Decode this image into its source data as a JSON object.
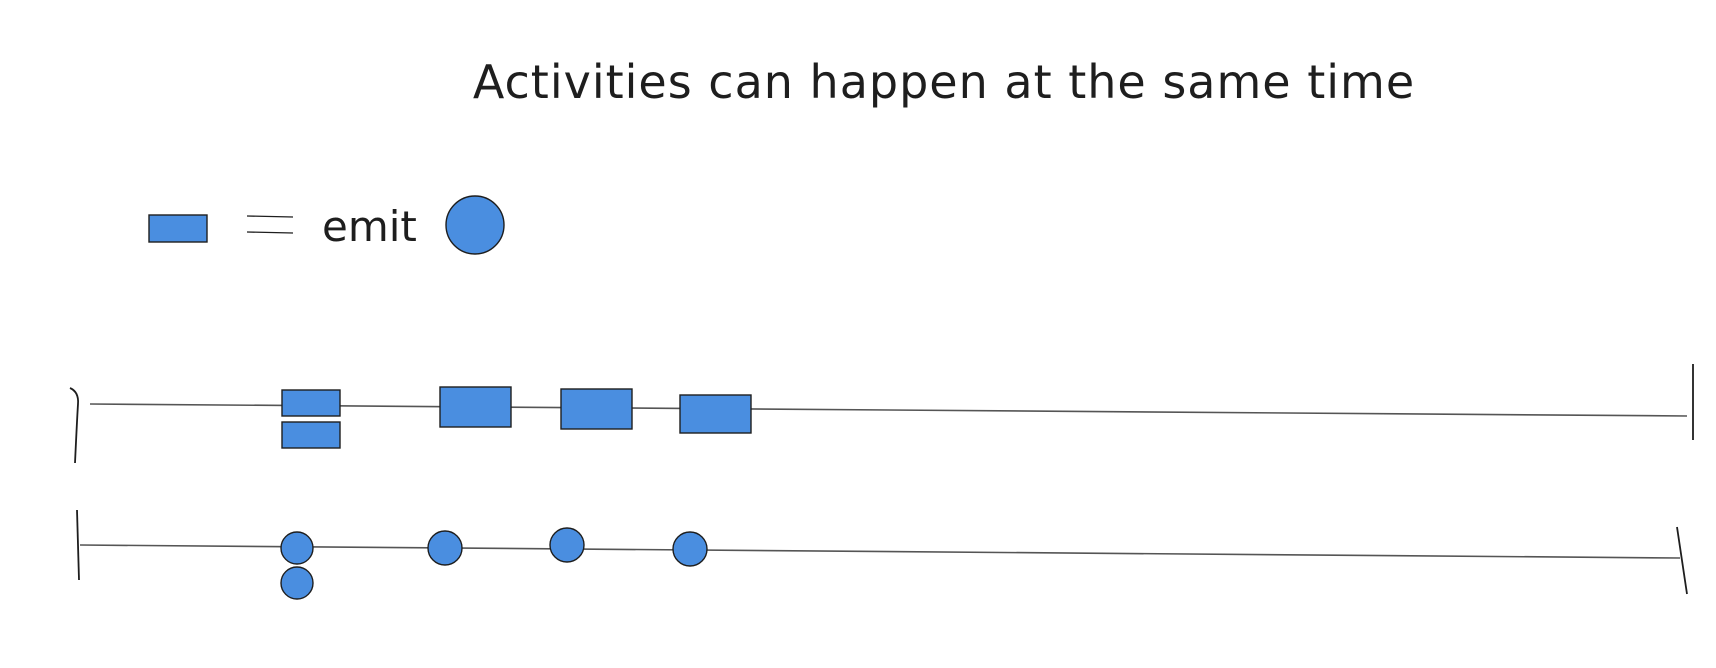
{
  "title": "Activities can happen at the same time",
  "legend": {
    "label": "emit",
    "rect_icon": "rectangle",
    "equals_icon": "equals-sign",
    "circle_icon": "circle"
  },
  "colors": {
    "fill": "#4a8ee0",
    "stroke": "#1e1e1e",
    "axis": "#555555",
    "background": "#ffffff"
  },
  "timelines": [
    {
      "name": "rectangle-timeline",
      "marker": "rectangle",
      "groups": [
        2,
        1,
        1,
        1
      ]
    },
    {
      "name": "circle-timeline",
      "marker": "circle",
      "groups": [
        2,
        1,
        1,
        1
      ]
    }
  ]
}
